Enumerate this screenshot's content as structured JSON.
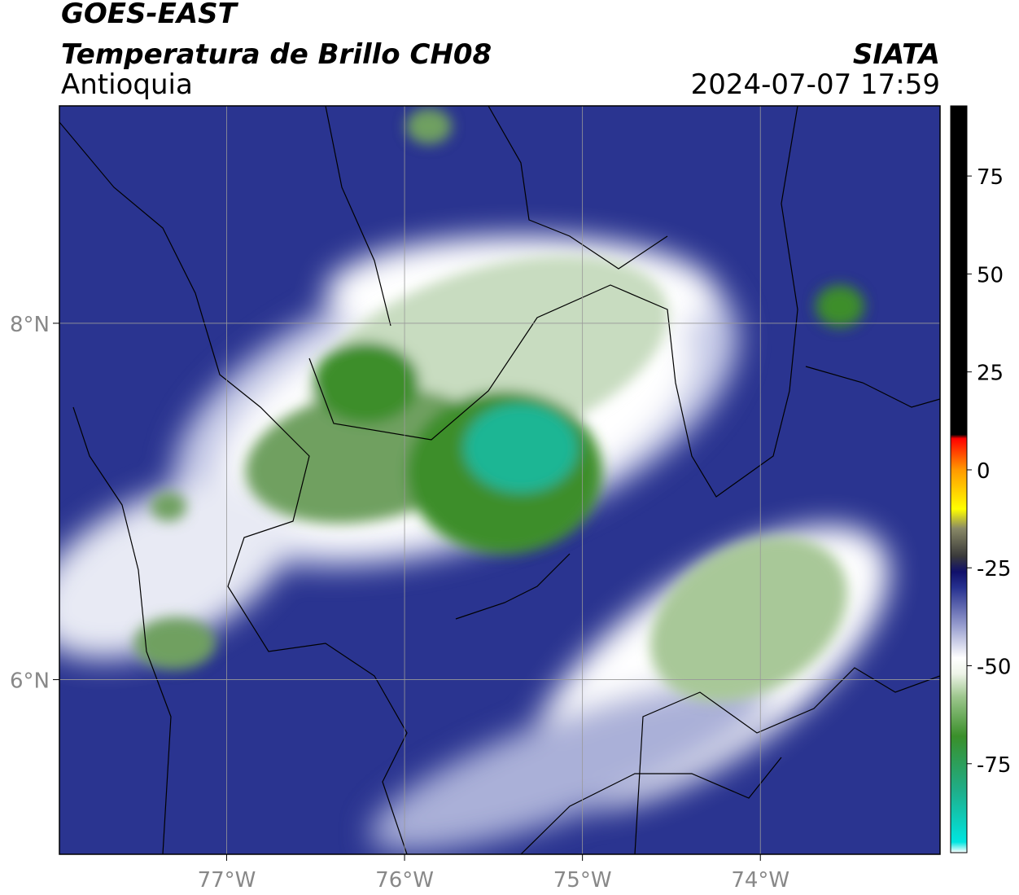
{
  "header": {
    "title": "GOES-EAST",
    "subtitle": "Temperatura de Brillo CH08",
    "region": "Antioquia",
    "source": "SIATA",
    "datetime": "2024-07-07 17:59"
  },
  "map": {
    "xlim": [
      -77.94,
      -72.99
    ],
    "ylim": [
      5.02,
      9.22
    ],
    "xticks": [
      {
        "value": -77,
        "label": "77°W"
      },
      {
        "value": -76,
        "label": "76°W"
      },
      {
        "value": -75,
        "label": "75°W"
      },
      {
        "value": -74,
        "label": "74°W"
      }
    ],
    "yticks": [
      {
        "value": 6,
        "label": "6°N"
      },
      {
        "value": 8,
        "label": "8°N"
      }
    ],
    "grid": true
  },
  "colorbar": {
    "clim": [
      -97.7,
      92.9
    ],
    "ticks": [
      75,
      50,
      25,
      0,
      -25,
      -50,
      -75
    ],
    "colormap": [
      {
        "value": -97.7,
        "color": "#ffffff"
      },
      {
        "value": -95,
        "color": "#00e5e0"
      },
      {
        "value": -82,
        "color": "#1fae8a"
      },
      {
        "value": -68,
        "color": "#3a8f2a"
      },
      {
        "value": -58,
        "color": "#9cc68c"
      },
      {
        "value": -52,
        "color": "#eef4e8"
      },
      {
        "value": -48,
        "color": "#ffffff"
      },
      {
        "value": -40,
        "color": "#9aa0d0"
      },
      {
        "value": -30,
        "color": "#26308f"
      },
      {
        "value": -26,
        "color": "#10106a"
      },
      {
        "value": -22,
        "color": "#3a3a3a"
      },
      {
        "value": -15,
        "color": "#888866"
      },
      {
        "value": -10,
        "color": "#ffff00"
      },
      {
        "value": 0,
        "color": "#ff9900"
      },
      {
        "value": 8,
        "color": "#ff0000"
      },
      {
        "value": 9,
        "color": "#000000"
      },
      {
        "value": 92.9,
        "color": "#000000"
      }
    ]
  }
}
